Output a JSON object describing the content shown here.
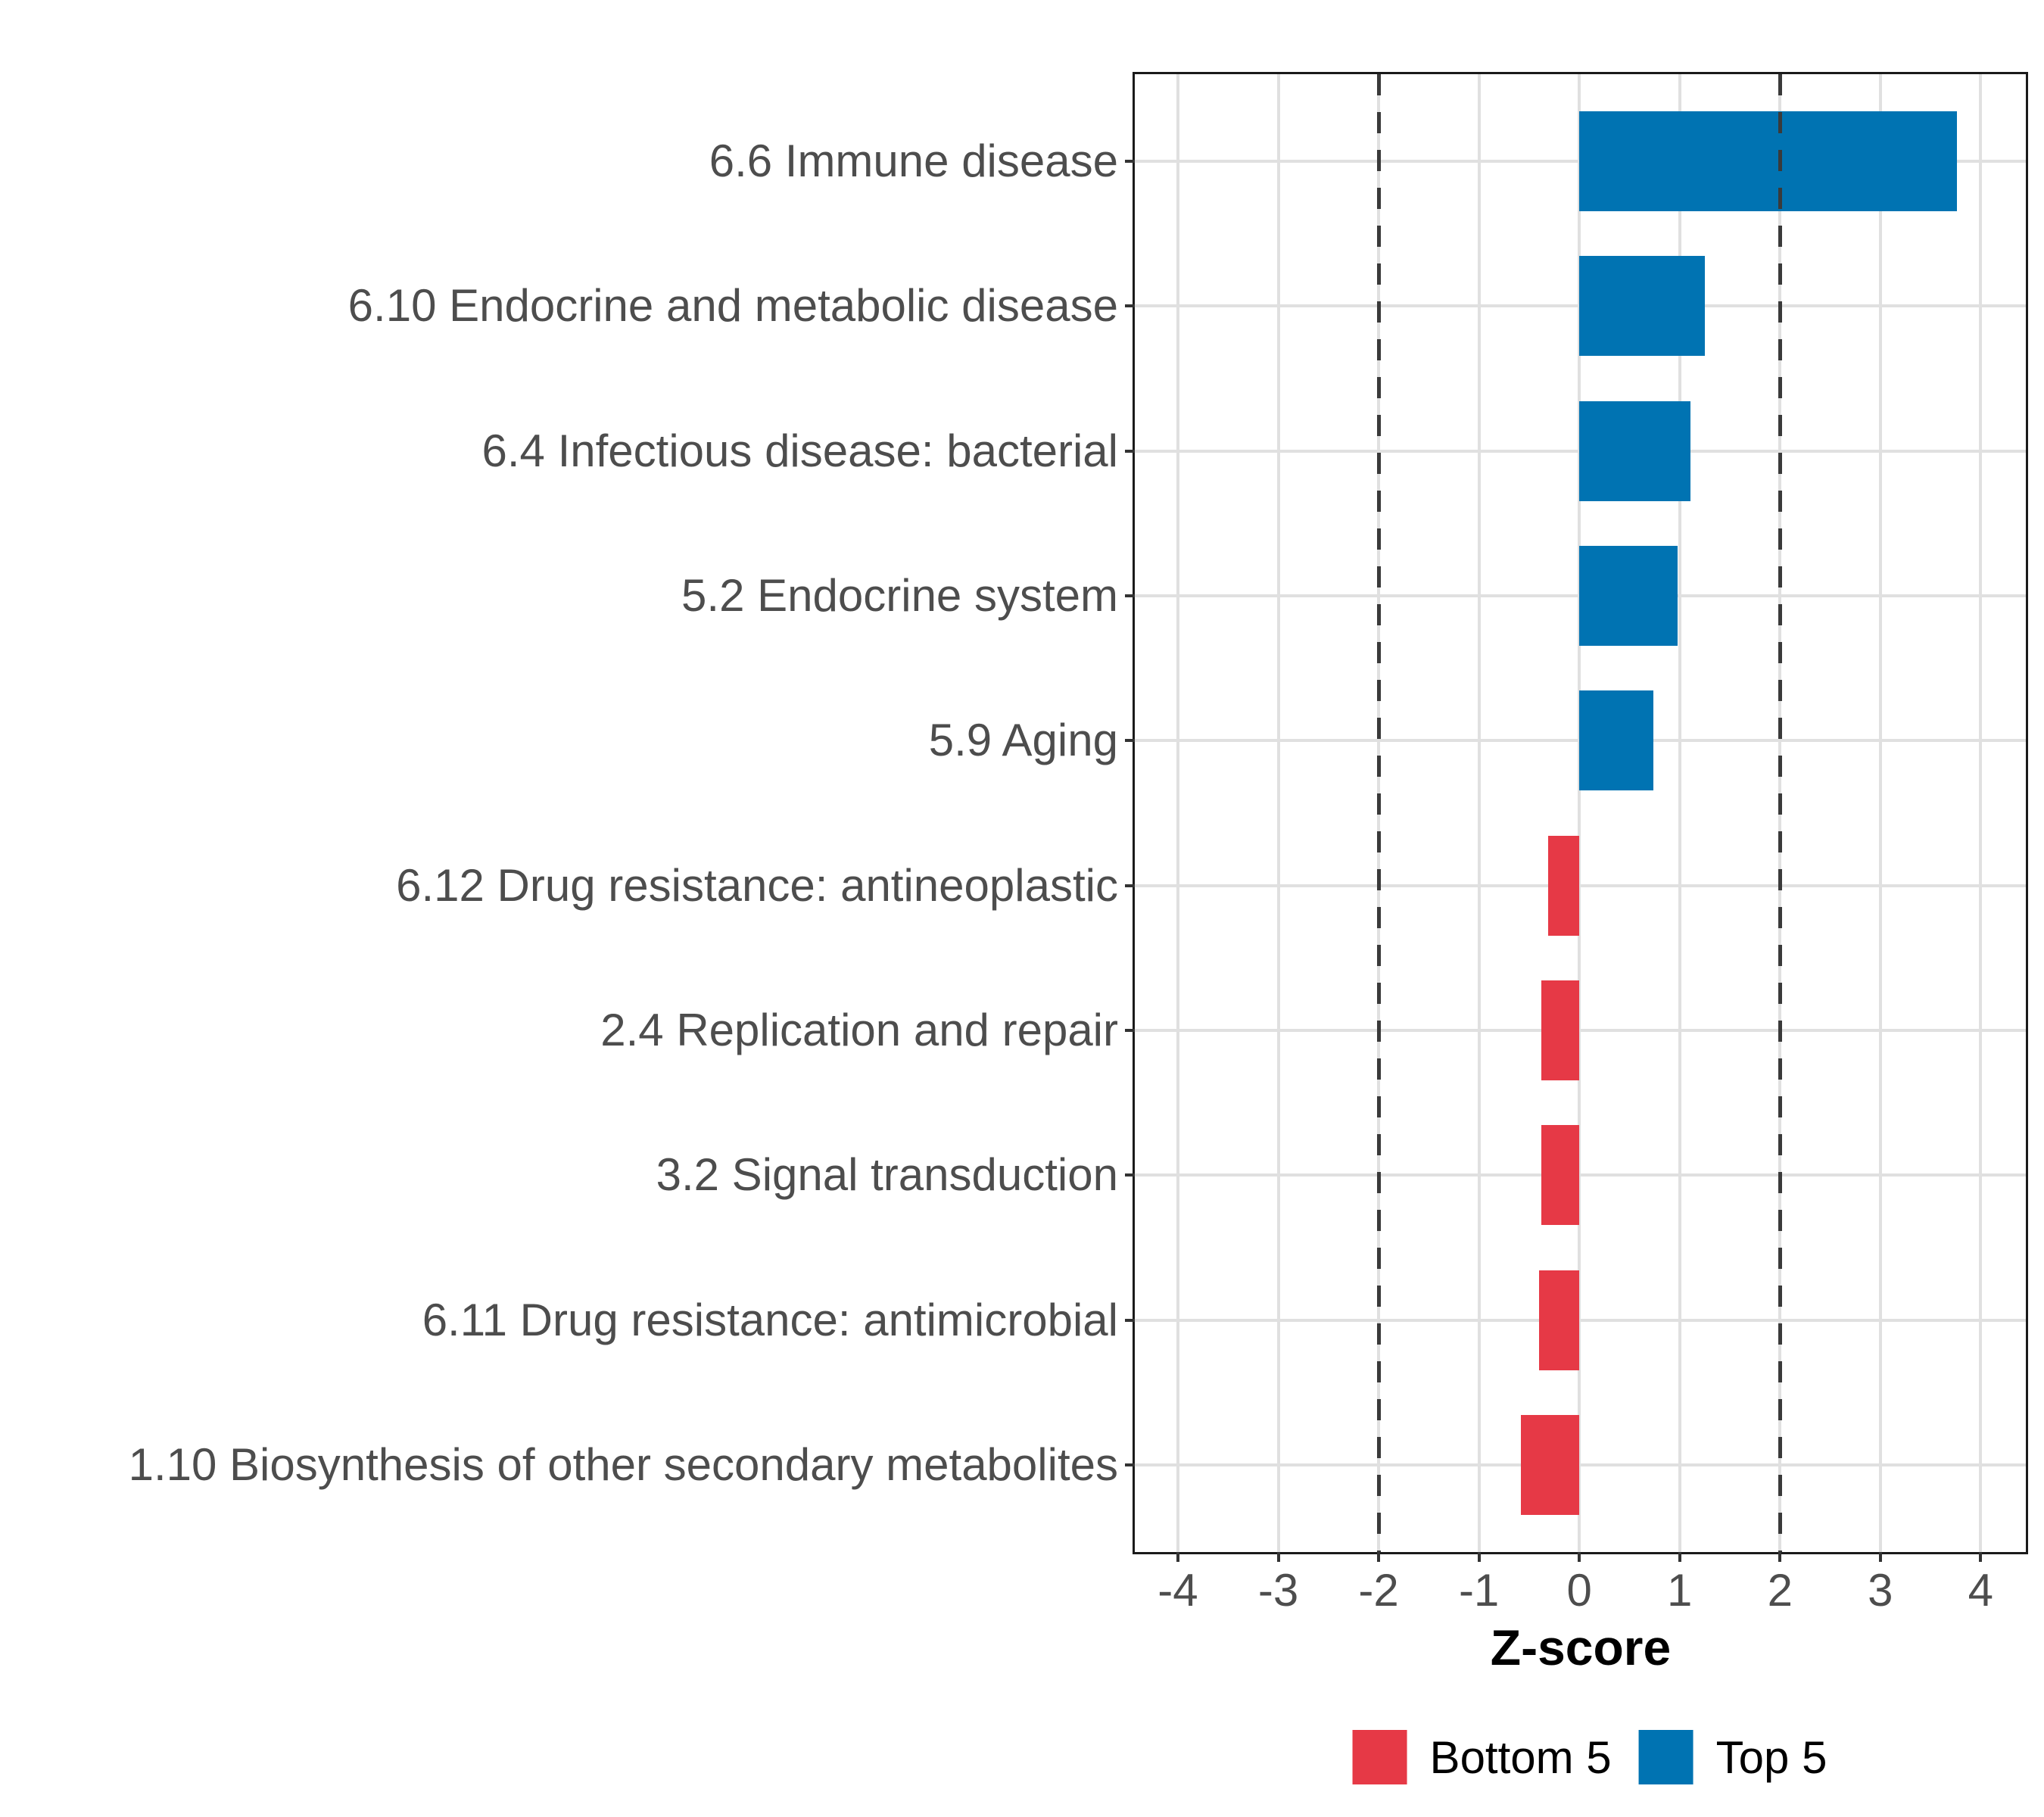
{
  "chart_data": {
    "type": "bar",
    "orientation": "horizontal",
    "title": "",
    "xlabel": "Z-score",
    "ylabel": "",
    "categories": [
      "6.6 Immune disease",
      "6.10 Endocrine and metabolic disease",
      "6.4 Infectious disease: bacterial",
      "5.2 Endocrine system",
      "5.9 Aging",
      "6.12 Drug resistance: antineoplastic",
      "2.4 Replication and repair",
      "3.2 Signal transduction",
      "6.11 Drug resistance: antimicrobial",
      "1.10 Biosynthesis of other secondary metabolites"
    ],
    "values": [
      3.76,
      1.25,
      1.11,
      0.98,
      0.74,
      -0.31,
      -0.38,
      -0.38,
      -0.4,
      -0.58
    ],
    "groups": [
      "Top 5",
      "Top 5",
      "Top 5",
      "Top 5",
      "Top 5",
      "Bottom 5",
      "Bottom 5",
      "Bottom 5",
      "Bottom 5",
      "Bottom 5"
    ],
    "group_colors": {
      "Top 5": "#0073b2",
      "Bottom 5": "#e63946"
    },
    "xlim": [
      -4.43,
      4.45
    ],
    "xticks": [
      -4,
      -3,
      -2,
      -1,
      0,
      1,
      2,
      3,
      4
    ],
    "xtick_labels": [
      "-4",
      "-3",
      "-2",
      "-1",
      "0",
      "1",
      "2",
      "3",
      "4"
    ],
    "reference_lines": [
      -2,
      2
    ],
    "grid": "on",
    "legend": {
      "position": "bottom",
      "entries": [
        {
          "label": "Bottom 5",
          "color": "#e63946"
        },
        {
          "label": "Top 5",
          "color": "#0073b2"
        }
      ]
    }
  },
  "colors": {
    "top5": "#0073b2",
    "bottom5": "#e63946",
    "grid": "#e0e0e0",
    "panel_border": "#1a1a1a",
    "reference_line": "#3a3a3a",
    "axis_text": "#4d4d4d",
    "title_text": "#000000",
    "background": "#ffffff"
  }
}
